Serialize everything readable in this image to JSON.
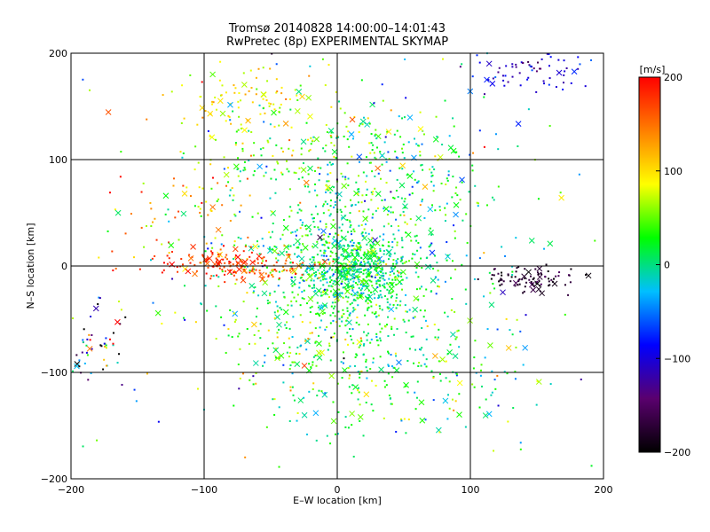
{
  "chart_data": {
    "type": "scatter",
    "title": "Tromsø 20140828 14:00:00–14:01:43",
    "subtitle": "RwPretec (8p) EXPERIMENTAL SKYMAP",
    "xlabel": "E–W location [km]",
    "ylabel": "N–S location [km]",
    "xlim": [
      -200,
      200
    ],
    "ylim": [
      -200,
      200
    ],
    "x_ticks": [
      -200,
      -100,
      0,
      100,
      200
    ],
    "y_ticks": [
      -200,
      -100,
      0,
      100,
      200
    ],
    "x_tick_labels": [
      "−200",
      "−100",
      "0",
      "100",
      "200"
    ],
    "y_tick_labels": [
      "−200",
      "−100",
      "0",
      "100",
      "200"
    ],
    "grid": true,
    "colorbar": {
      "label": "[m/s]",
      "range": [
        -200,
        200
      ],
      "ticks": [
        200,
        100,
        0,
        -100,
        -200
      ],
      "tick_labels": [
        "200",
        "100",
        "0",
        "−100",
        "−200"
      ],
      "colormap": [
        "#000000",
        "#5a006e",
        "#0000ff",
        "#00bfff",
        "#00ff00",
        "#ffff00",
        "#ff7f00",
        "#ff0000"
      ]
    },
    "markers": [
      "dot",
      "cross"
    ],
    "clusters": [
      {
        "cx": 15,
        "cy": -5,
        "sx": 22,
        "sy": 18,
        "n": 480,
        "v": 10,
        "vs": 25
      },
      {
        "cx": 5,
        "cy": 20,
        "sx": 45,
        "sy": 60,
        "n": 600,
        "v": 15,
        "vs": 35
      },
      {
        "cx": 10,
        "cy": -70,
        "sx": 45,
        "sy": 50,
        "n": 300,
        "v": 20,
        "vs": 25
      },
      {
        "cx": -60,
        "cy": 0,
        "sx": 25,
        "sy": 7,
        "n": 110,
        "v": 160,
        "vs": 25
      },
      {
        "cx": -100,
        "cy": 5,
        "sx": 25,
        "sy": 8,
        "n": 70,
        "v": 185,
        "vs": 15
      },
      {
        "cx": -70,
        "cy": 150,
        "sx": 25,
        "sy": 15,
        "n": 90,
        "v": 95,
        "vs": 25
      },
      {
        "cx": -25,
        "cy": 110,
        "sx": 45,
        "sy": 45,
        "n": 140,
        "v": 50,
        "vs": 40
      },
      {
        "cx": -110,
        "cy": 50,
        "sx": 25,
        "sy": 25,
        "n": 60,
        "v": 110,
        "vs": 60
      },
      {
        "cx": 145,
        "cy": -12,
        "sx": 17,
        "sy": 6,
        "n": 90,
        "v": -180,
        "vs": 15
      },
      {
        "cx": 140,
        "cy": 185,
        "sx": 22,
        "sy": 10,
        "n": 70,
        "v": -110,
        "vs": 25
      },
      {
        "cx": -185,
        "cy": -70,
        "sx": 12,
        "sy": 22,
        "n": 60,
        "v": -60,
        "vs": 170
      },
      {
        "cx": 60,
        "cy": 80,
        "sx": 30,
        "sy": 40,
        "n": 120,
        "v": 5,
        "vs": 45
      },
      {
        "cx": 90,
        "cy": -100,
        "sx": 35,
        "sy": 40,
        "n": 70,
        "v": 10,
        "vs": 60
      },
      {
        "cx": -30,
        "cy": -60,
        "sx": 40,
        "sy": 30,
        "n": 80,
        "v": 60,
        "vs": 40
      },
      {
        "cx": 0,
        "cy": 0,
        "sx": 110,
        "sy": 110,
        "n": 200,
        "v": 20,
        "vs": 80
      }
    ]
  }
}
